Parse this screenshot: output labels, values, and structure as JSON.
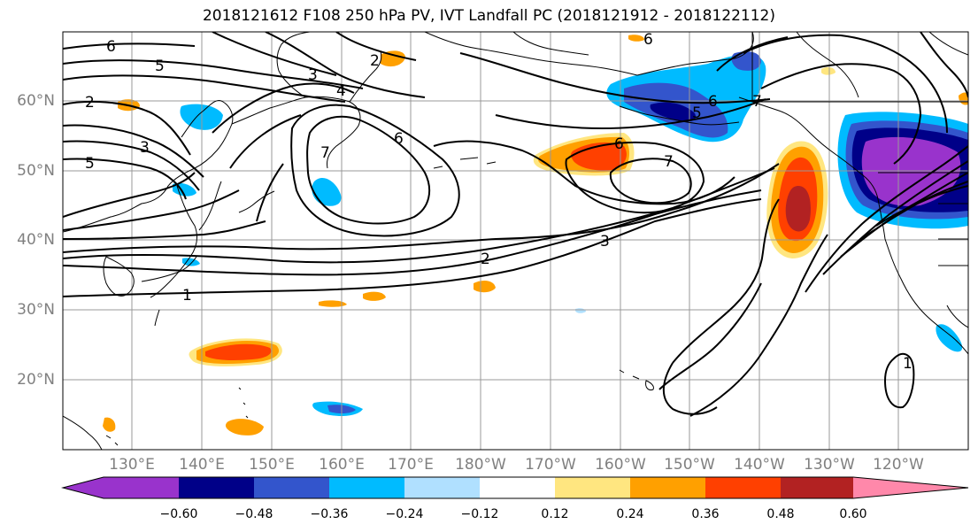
{
  "title": "2018121612 F108 250 hPa PV, IVT Landfall PC (2018121912 - 2018122112)",
  "map": {
    "lat_labels": [
      "60°N",
      "50°N",
      "40°N",
      "30°N",
      "20°N"
    ],
    "lon_labels": [
      "130°E",
      "140°E",
      "150°E",
      "160°E",
      "170°E",
      "180°W",
      "170°W",
      "160°W",
      "150°W",
      "140°W",
      "130°W",
      "120°W"
    ],
    "pv_contour_labels": [
      "6",
      "5",
      "2",
      "3",
      "5",
      "3",
      "2",
      "4",
      "6",
      "7",
      "5",
      "6",
      "7",
      "6",
      "6",
      "7",
      "3",
      "2",
      "1",
      "1"
    ]
  },
  "colorbar": {
    "tick_labels": [
      "−0.60",
      "−0.48",
      "−0.36",
      "−0.24",
      "−0.12",
      "0.12",
      "0.24",
      "0.36",
      "0.48",
      "0.60"
    ],
    "colors": [
      "#9933cc",
      "#000088",
      "#3355cc",
      "#00bbff",
      "#b0e0ff",
      "#ffffff",
      "#ffe680",
      "#ffa000",
      "#ff4000",
      "#b22222",
      "#ff88aa"
    ]
  }
}
